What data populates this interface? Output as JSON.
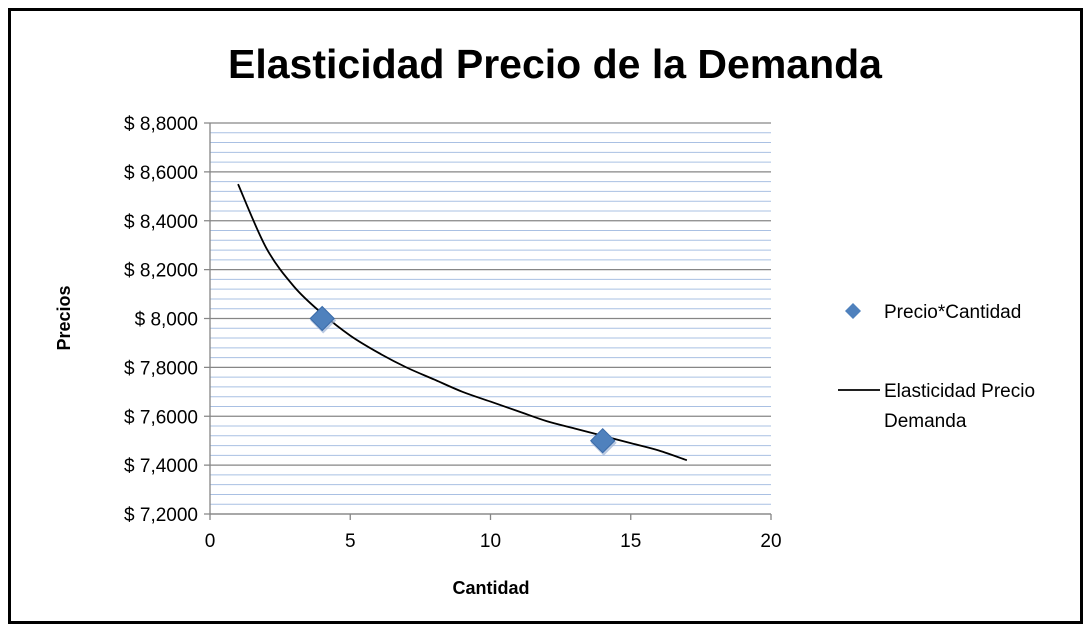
{
  "chart_data": {
    "type": "scatter",
    "title": "Elasticidad Precio de la Demanda",
    "xlabel": "Cantidad",
    "ylabel": "Precios",
    "xlim": [
      0,
      20
    ],
    "ylim": [
      7.2,
      8.8
    ],
    "x_ticks": [
      "0",
      "5",
      "10",
      "15",
      "20"
    ],
    "x_tick_values": [
      0,
      5,
      10,
      15,
      20
    ],
    "y_ticks": [
      "$ 7,2000",
      "$ 7,4000",
      "$ 7,6000",
      "$ 7,8000",
      "$ 8,000",
      "$ 8,2000",
      "$ 8,4000",
      "$ 8,6000",
      "$ 8,8000"
    ],
    "y_tick_values": [
      7.2,
      7.4,
      7.6,
      7.8,
      8.0,
      8.2,
      8.4,
      8.6,
      8.8
    ],
    "grid": true,
    "legend": "right",
    "series": [
      {
        "name": "Precio*Cantidad",
        "kind": "scatter",
        "marker": "diamond",
        "color": "#4F81BD",
        "x": [
          4,
          14
        ],
        "y": [
          8.0,
          7.5
        ]
      },
      {
        "name": "Elasticidad Precio Demanda",
        "kind": "line",
        "color": "#000000",
        "x": [
          1,
          2,
          3,
          4,
          5,
          6,
          7,
          8,
          9,
          10,
          11,
          12,
          13,
          14,
          15,
          16,
          17
        ],
        "y": [
          8.55,
          8.29,
          8.13,
          8.02,
          7.93,
          7.86,
          7.8,
          7.75,
          7.7,
          7.66,
          7.62,
          7.58,
          7.55,
          7.52,
          7.49,
          7.46,
          7.42
        ]
      }
    ],
    "legend_lines": {
      "scatter": [
        "Precio*Cantidad"
      ],
      "line": [
        "Elasticidad Precio",
        "Demanda"
      ]
    }
  }
}
